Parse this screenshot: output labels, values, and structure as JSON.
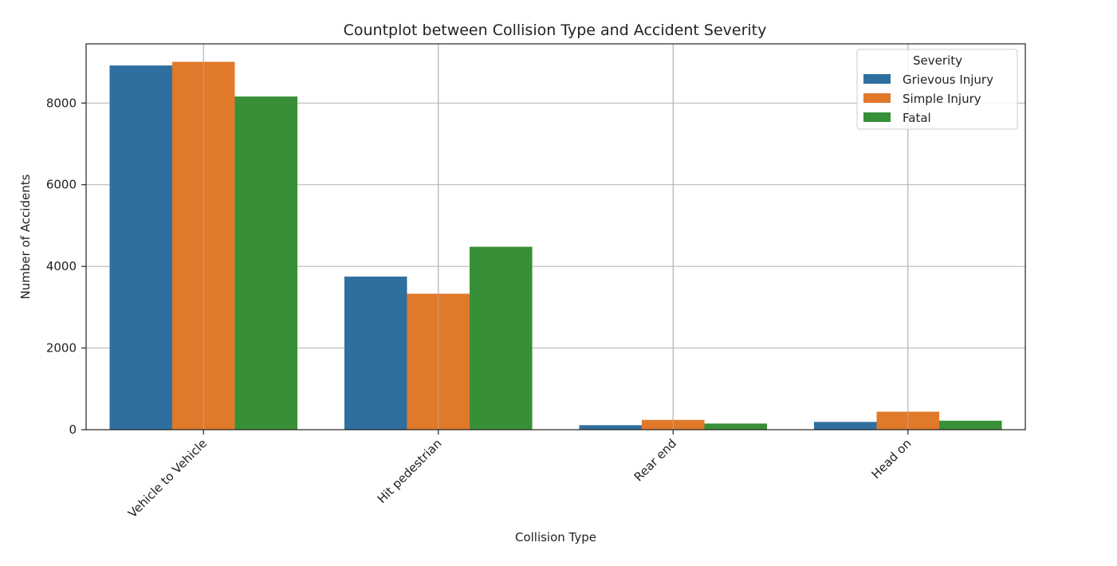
{
  "chart_data": {
    "type": "bar",
    "title": "Countplot between Collision Type and Accident Severity",
    "xlabel": "Collision Type",
    "ylabel": "Number of Accidents",
    "categories": [
      "Vehicle to Vehicle",
      "Hit pedestrian",
      "Rear end",
      "Head on"
    ],
    "series": [
      {
        "name": "Grievous Injury",
        "color": "#2f6fa0",
        "values": [
          8920,
          3750,
          110,
          190
        ]
      },
      {
        "name": "Simple Injury",
        "color": "#e0792a",
        "values": [
          9010,
          3330,
          240,
          440
        ]
      },
      {
        "name": "Fatal",
        "color": "#378f37",
        "values": [
          8160,
          4480,
          150,
          220
        ]
      }
    ],
    "ylim": [
      0,
      9450
    ],
    "yticks": [
      0,
      2000,
      4000,
      6000,
      8000
    ],
    "ytick_labels": [
      "0",
      "2000",
      "4000",
      "6000",
      "8000"
    ],
    "grid": true,
    "legend": {
      "title": "Severity",
      "placement": "top-right"
    }
  }
}
